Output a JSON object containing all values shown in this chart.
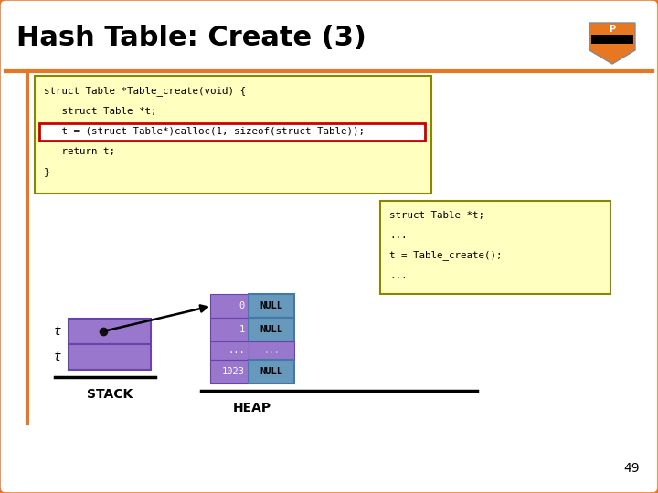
{
  "title": "Hash Table: Create (3)",
  "title_fontsize": 22,
  "title_fontweight": "bold",
  "bg_color": "#FFFFFF",
  "outer_border_color": "#E87722",
  "inner_bg_color": "#FFFFFF",
  "code_box_bg": "#FFFFC0",
  "code_box_border": "#888800",
  "code_highlight_bg": "#FFFFFF",
  "code_highlight_border": "#CC0000",
  "code_lines": [
    "struct Table *Table_create(void) {",
    "   struct Table *t;",
    "   t = (struct Table*)calloc(1, sizeof(struct Table));",
    "   return t;",
    "}"
  ],
  "highlight_line_idx": 2,
  "sidebar_box_bg": "#FFFFC0",
  "sidebar_box_border": "#888800",
  "sidebar_lines": [
    "struct Table *t;",
    "...",
    "t = Table_create();",
    "..."
  ],
  "stack_color": "#9977CC",
  "stack_border_color": "#6644AA",
  "heap_color": "#9977CC",
  "heap_border_color": "#6644AA",
  "null_box_color": "#6699BB",
  "null_box_border": "#4477AA",
  "arrow_color": "#000000",
  "stack_label": "STACK",
  "heap_label": "HEAP",
  "heap_rows": [
    "0",
    "1",
    "...",
    "1023"
  ],
  "heap_null_labels": [
    "NULL",
    "NULL",
    "",
    "NULL"
  ],
  "page_number": "49",
  "title_bg": "#FFFFFF",
  "divider_color": "#E87722"
}
